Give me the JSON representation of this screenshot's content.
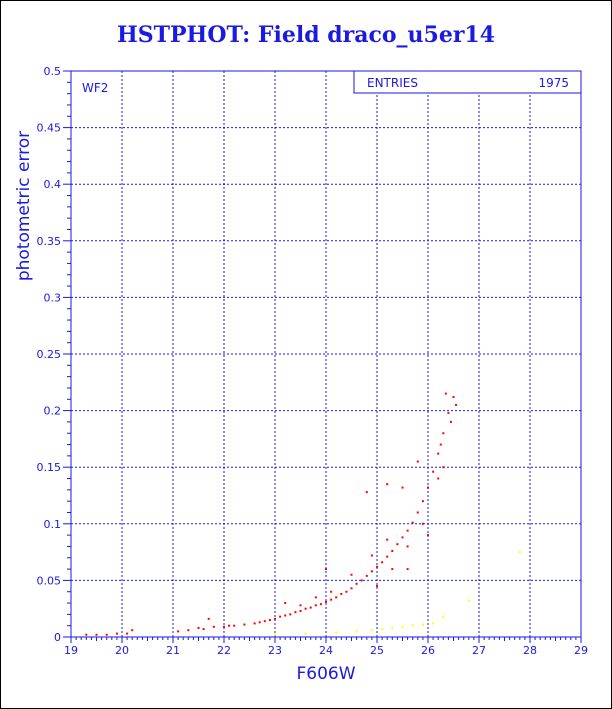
{
  "title": "HSTPHOT: Field draco_u5er14",
  "chart_data": {
    "type": "scatter",
    "xlabel": "F606W",
    "ylabel": "photometric error",
    "xlim": [
      19,
      29
    ],
    "ylim": [
      0,
      0.5
    ],
    "x_ticks": [
      "19",
      "20",
      "21",
      "22",
      "23",
      "24",
      "25",
      "26",
      "27",
      "28",
      "29"
    ],
    "y_ticks": [
      "0",
      "0.05",
      "0.1",
      "0.15",
      "0.2",
      "0.25",
      "0.3",
      "0.35",
      "0.4",
      "0.45",
      "0.5"
    ],
    "grid": true,
    "annotation": "WF2",
    "stats_box": {
      "label": "ENTRIES",
      "value": "1975"
    },
    "series": [
      {
        "color": "#ff0000",
        "points": [
          [
            19.3,
            0.002
          ],
          [
            19.5,
            0.002
          ],
          [
            19.7,
            0.002
          ],
          [
            19.9,
            0.003
          ],
          [
            20.1,
            0.003
          ],
          [
            20.2,
            0.006
          ],
          [
            21.1,
            0.005
          ],
          [
            21.3,
            0.006
          ],
          [
            21.5,
            0.008
          ],
          [
            21.6,
            0.007
          ],
          [
            21.7,
            0.016
          ],
          [
            21.8,
            0.009
          ],
          [
            22.0,
            0.009
          ],
          [
            22.1,
            0.01
          ],
          [
            22.2,
            0.01
          ],
          [
            22.4,
            0.011
          ],
          [
            22.6,
            0.012
          ],
          [
            22.7,
            0.013
          ],
          [
            22.8,
            0.014
          ],
          [
            22.9,
            0.015
          ],
          [
            23.0,
            0.016
          ],
          [
            23.1,
            0.018
          ],
          [
            23.2,
            0.019
          ],
          [
            23.3,
            0.02
          ],
          [
            23.4,
            0.022
          ],
          [
            23.5,
            0.023
          ],
          [
            23.6,
            0.025
          ],
          [
            23.7,
            0.026
          ],
          [
            23.8,
            0.028
          ],
          [
            23.9,
            0.029
          ],
          [
            24.0,
            0.031
          ],
          [
            24.1,
            0.033
          ],
          [
            24.2,
            0.035
          ],
          [
            24.3,
            0.038
          ],
          [
            24.4,
            0.04
          ],
          [
            24.5,
            0.043
          ],
          [
            24.6,
            0.047
          ],
          [
            24.7,
            0.05
          ],
          [
            24.8,
            0.054
          ],
          [
            24.9,
            0.058
          ],
          [
            25.0,
            0.062
          ],
          [
            25.1,
            0.066
          ],
          [
            25.2,
            0.071
          ],
          [
            25.3,
            0.076
          ],
          [
            25.4,
            0.082
          ],
          [
            25.5,
            0.088
          ],
          [
            25.6,
            0.094
          ],
          [
            25.7,
            0.101
          ],
          [
            25.8,
            0.11
          ],
          [
            25.9,
            0.12
          ],
          [
            26.0,
            0.132
          ],
          [
            26.1,
            0.146
          ],
          [
            26.2,
            0.162
          ],
          [
            26.3,
            0.18
          ],
          [
            26.4,
            0.198
          ],
          [
            26.5,
            0.212
          ],
          [
            26.55,
            0.205
          ],
          [
            26.45,
            0.19
          ],
          [
            23.5,
            0.028
          ],
          [
            23.8,
            0.035
          ],
          [
            24.1,
            0.04
          ],
          [
            24.5,
            0.055
          ],
          [
            24.9,
            0.072
          ],
          [
            25.2,
            0.086
          ],
          [
            25.0,
            0.045
          ],
          [
            25.3,
            0.06
          ],
          [
            25.6,
            0.08
          ],
          [
            25.9,
            0.1
          ],
          [
            26.2,
            0.14
          ],
          [
            26.3,
            0.15
          ],
          [
            25.5,
            0.132
          ],
          [
            25.8,
            0.155
          ],
          [
            24.8,
            0.128
          ],
          [
            25.6,
            0.06
          ],
          [
            24.0,
            0.06
          ],
          [
            25.2,
            0.135
          ],
          [
            26.0,
            0.09
          ],
          [
            23.2,
            0.03
          ],
          [
            26.25,
            0.17
          ],
          [
            26.35,
            0.215
          ]
        ]
      },
      {
        "color": "#ffff00",
        "points": [
          [
            23.0,
            0.002
          ],
          [
            23.6,
            0.003
          ],
          [
            24.2,
            0.004
          ],
          [
            24.6,
            0.005
          ],
          [
            24.9,
            0.006
          ],
          [
            25.1,
            0.007
          ],
          [
            25.3,
            0.008
          ],
          [
            25.5,
            0.009
          ],
          [
            25.7,
            0.01
          ],
          [
            25.9,
            0.011
          ],
          [
            26.1,
            0.012
          ],
          [
            26.3,
            0.018
          ],
          [
            26.8,
            0.032
          ],
          [
            27.8,
            0.075
          ]
        ]
      }
    ]
  }
}
